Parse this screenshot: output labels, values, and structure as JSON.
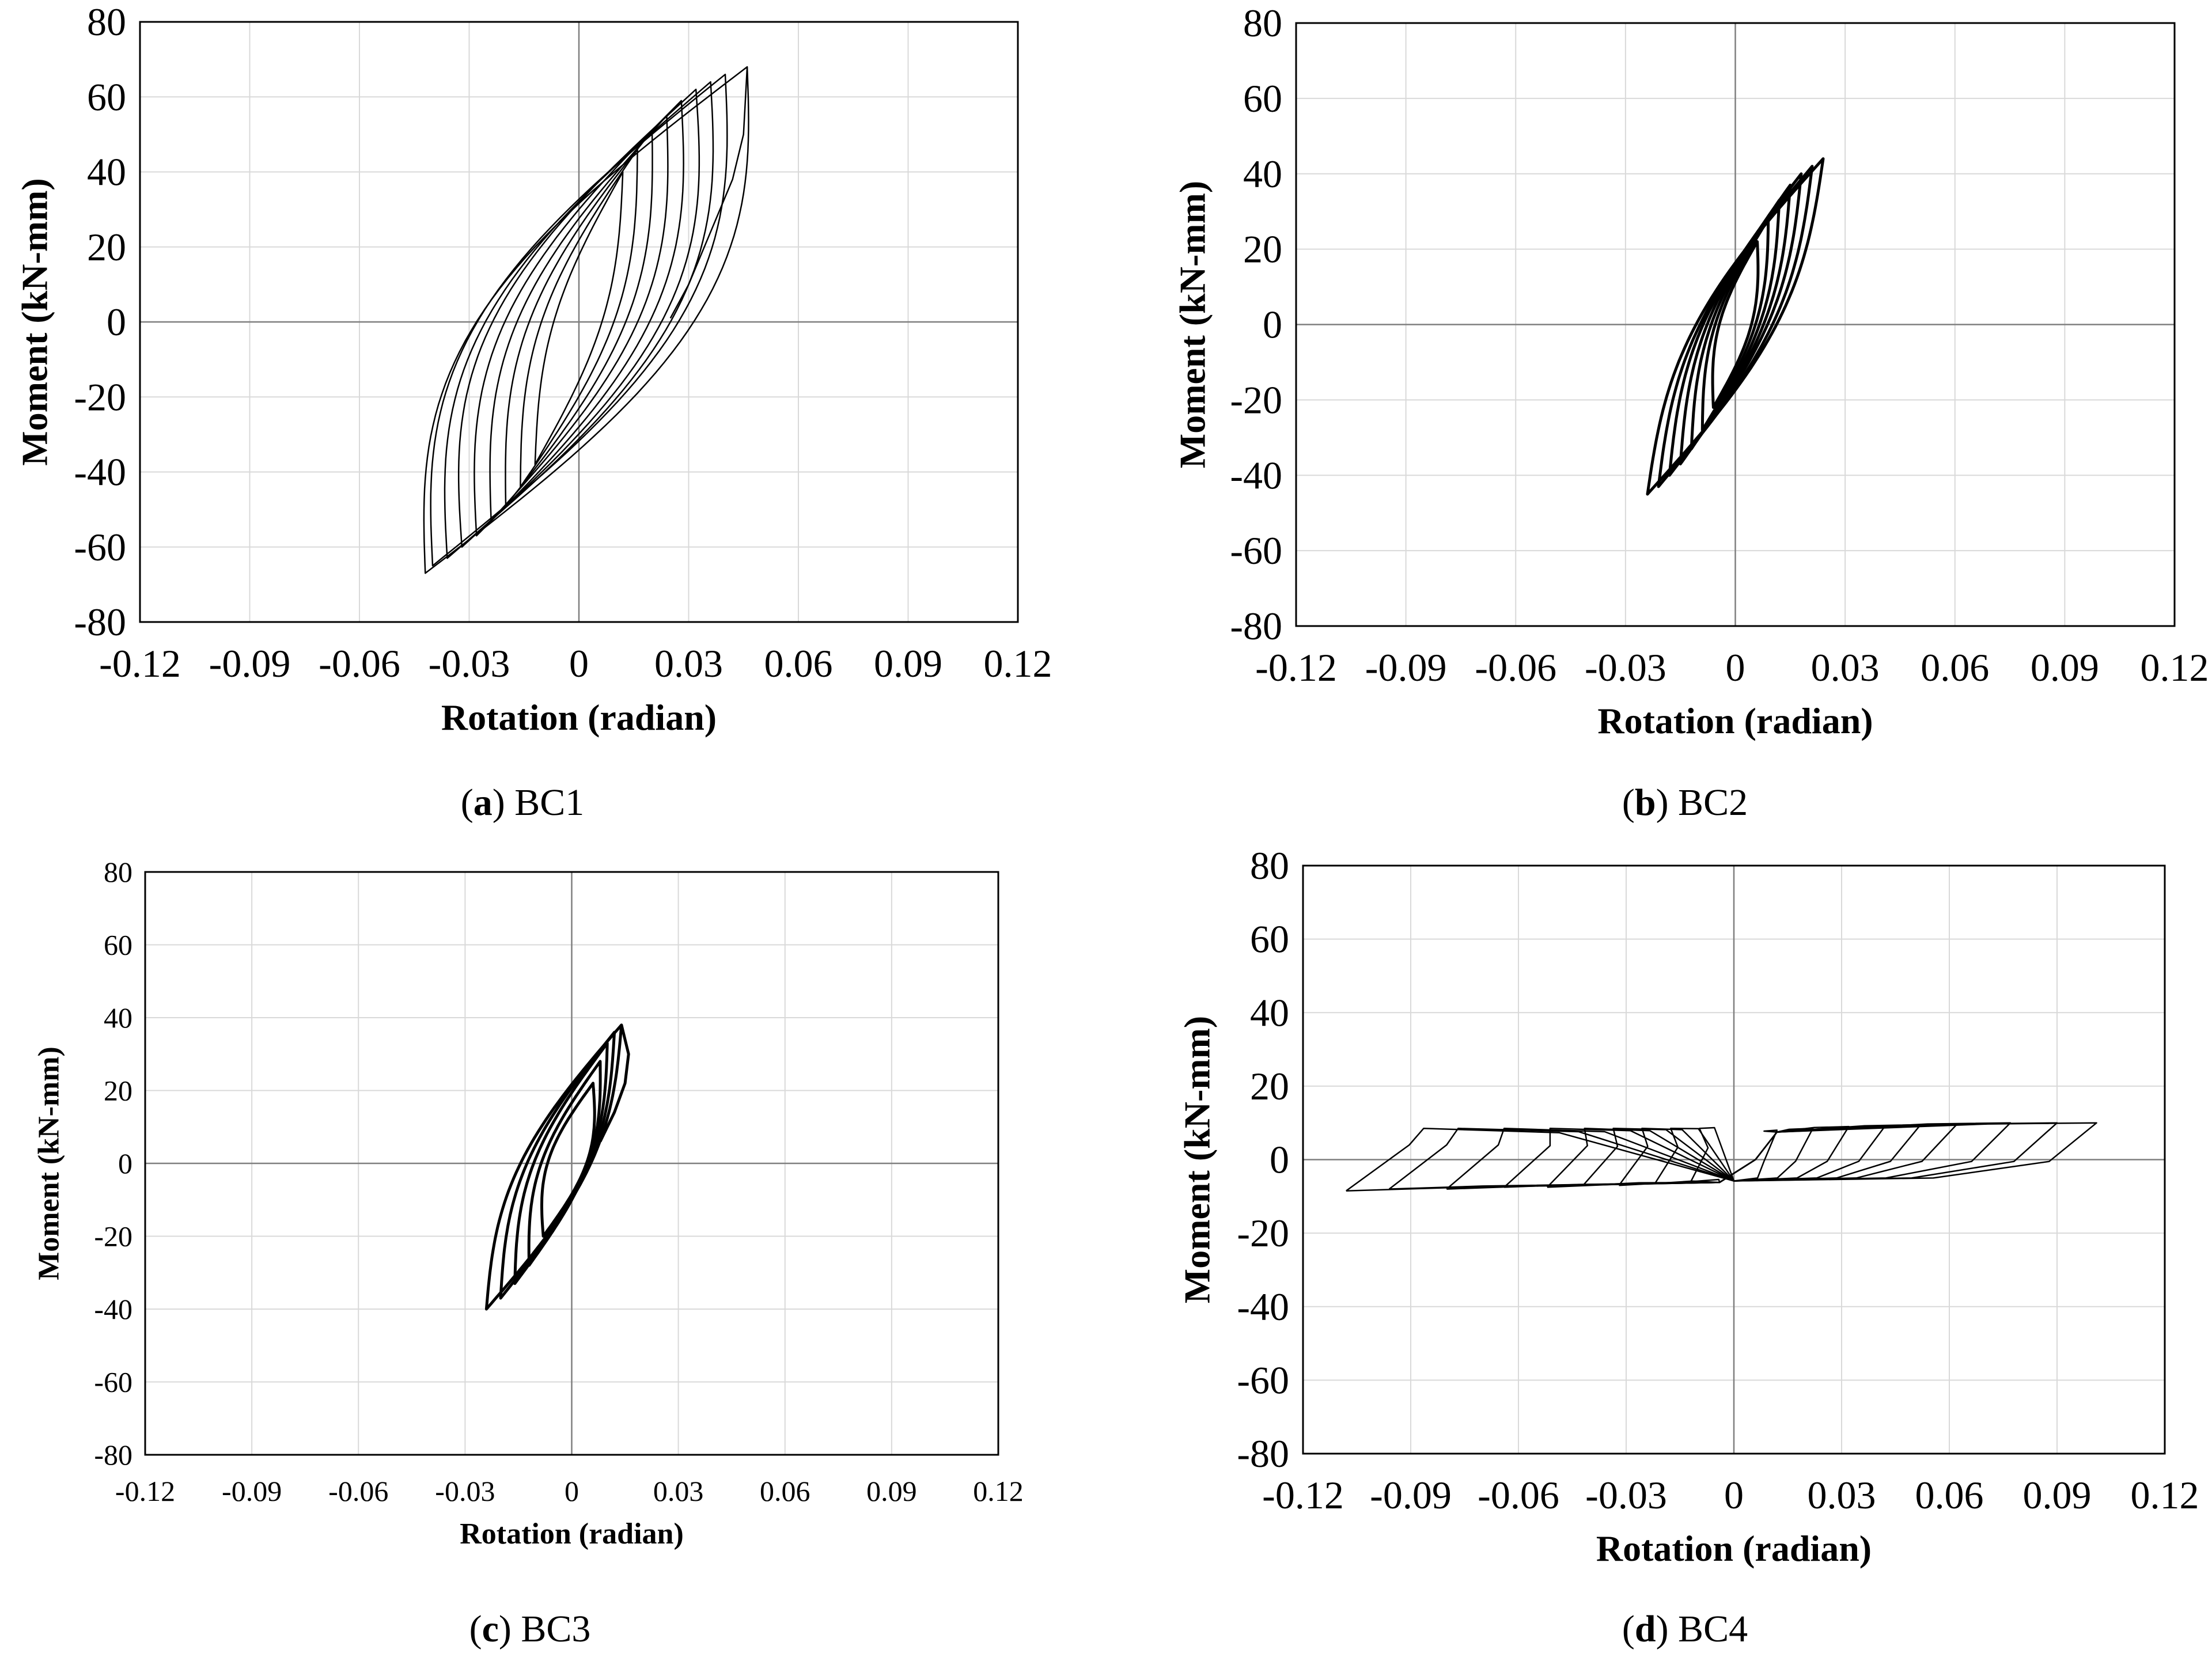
{
  "figure": {
    "panels": [
      {
        "letter": "a",
        "name": "BC1"
      },
      {
        "letter": "b",
        "name": "BC2"
      },
      {
        "letter": "c",
        "name": "BC3"
      },
      {
        "letter": "d",
        "name": "BC4"
      }
    ]
  },
  "chart_data": [
    {
      "type": "line",
      "id": "a",
      "caption_letter": "a",
      "caption_name": "BC1",
      "xlabel": "Rotation (radian)",
      "ylabel": "Moment (kN-mm)",
      "xlim": [
        -0.12,
        0.12
      ],
      "ylim": [
        -80,
        80
      ],
      "grid": true,
      "xticks": [
        "-0.12",
        "-0.09",
        "-0.06",
        "-0.03",
        "0",
        "0.03",
        "0.06",
        "0.09",
        "0.12"
      ],
      "yticks": [
        "80",
        "60",
        "40",
        "20",
        "0",
        "-20",
        "-40",
        "-60",
        "-80"
      ],
      "series": [
        {
          "name": "hysteresis",
          "loops": [
            {
              "d_pos": 0.012,
              "m_pos": 40,
              "d_neg": -0.012,
              "m_neg": -38,
              "w": 6
            },
            {
              "d_pos": 0.016,
              "m_pos": 46,
              "d_neg": -0.016,
              "m_neg": -44,
              "w": 9
            },
            {
              "d_pos": 0.02,
              "m_pos": 51,
              "d_neg": -0.02,
              "m_neg": -49,
              "w": 12
            },
            {
              "d_pos": 0.024,
              "m_pos": 55,
              "d_neg": -0.024,
              "m_neg": -53,
              "w": 15
            },
            {
              "d_pos": 0.028,
              "m_pos": 59,
              "d_neg": -0.028,
              "m_neg": -57,
              "w": 18
            },
            {
              "d_pos": 0.032,
              "m_pos": 62,
              "d_neg": -0.032,
              "m_neg": -60,
              "w": 21
            },
            {
              "d_pos": 0.036,
              "m_pos": 64,
              "d_neg": -0.036,
              "m_neg": -63,
              "w": 23
            },
            {
              "d_pos": 0.04,
              "m_pos": 66,
              "d_neg": -0.04,
              "m_neg": -65,
              "w": 25
            },
            {
              "d_pos": 0.046,
              "m_pos": 68,
              "d_neg": -0.042,
              "m_neg": -67,
              "w": 27
            }
          ],
          "tail": {
            "x": [
              0.046,
              0.045,
              0.042,
              0.036,
              0.03,
              0.025
            ],
            "y": [
              68,
              50,
              38,
              24,
              10,
              1
            ]
          }
        }
      ]
    },
    {
      "type": "line",
      "id": "b",
      "caption_letter": "b",
      "caption_name": "BC2",
      "xlabel": "Rotation (radian)",
      "ylabel": "Moment (kN-mm)",
      "xlim": [
        -0.12,
        0.12
      ],
      "ylim": [
        -80,
        80
      ],
      "grid": true,
      "xticks": [
        "-0.12",
        "-0.09",
        "-0.06",
        "-0.03",
        "0",
        "0.03",
        "0.06",
        "0.09",
        "0.12"
      ],
      "yticks": [
        "80",
        "60",
        "40",
        "20",
        "0",
        "-20",
        "-40",
        "-60",
        "-80"
      ],
      "series": [
        {
          "name": "hysteresis",
          "loops": [
            {
              "d_pos": 0.006,
              "m_pos": 22,
              "d_neg": -0.006,
              "m_neg": -22,
              "w": 4
            },
            {
              "d_pos": 0.009,
              "m_pos": 28,
              "d_neg": -0.009,
              "m_neg": -28,
              "w": 5
            },
            {
              "d_pos": 0.012,
              "m_pos": 33,
              "d_neg": -0.012,
              "m_neg": -33,
              "w": 6
            },
            {
              "d_pos": 0.015,
              "m_pos": 37,
              "d_neg": -0.015,
              "m_neg": -37,
              "w": 7
            },
            {
              "d_pos": 0.018,
              "m_pos": 40,
              "d_neg": -0.018,
              "m_neg": -40,
              "w": 8
            },
            {
              "d_pos": 0.021,
              "m_pos": 42,
              "d_neg": -0.021,
              "m_neg": -43,
              "w": 9
            },
            {
              "d_pos": 0.024,
              "m_pos": 44,
              "d_neg": -0.024,
              "m_neg": -45,
              "w": 10
            }
          ]
        }
      ]
    },
    {
      "type": "line",
      "id": "c",
      "caption_letter": "c",
      "caption_name": "BC3",
      "xlabel": "Rotation (radian)",
      "ylabel": "Moment (kN-mm)",
      "xlim": [
        -0.12,
        0.12
      ],
      "ylim": [
        -80,
        80
      ],
      "grid": true,
      "xticks": [
        "-0.12",
        "-0.09",
        "-0.06",
        "-0.03",
        "0",
        "0.03",
        "0.06",
        "0.09",
        "0.12"
      ],
      "yticks": [
        "80",
        "60",
        "40",
        "20",
        "0",
        "-20",
        "-40",
        "-60",
        "-80"
      ],
      "series": [
        {
          "name": "hysteresis",
          "loops": [
            {
              "d_pos": 0.006,
              "m_pos": 22,
              "d_neg": -0.008,
              "m_neg": -20,
              "w": 5
            },
            {
              "d_pos": 0.008,
              "m_pos": 28,
              "d_neg": -0.012,
              "m_neg": -28,
              "w": 6
            },
            {
              "d_pos": 0.01,
              "m_pos": 33,
              "d_neg": -0.016,
              "m_neg": -33,
              "w": 7
            },
            {
              "d_pos": 0.012,
              "m_pos": 36,
              "d_neg": -0.02,
              "m_neg": -37,
              "w": 8
            },
            {
              "d_pos": 0.014,
              "m_pos": 38,
              "d_neg": -0.024,
              "m_neg": -40,
              "w": 9
            }
          ],
          "tail": {
            "x": [
              0.014,
              0.016,
              0.015,
              0.012,
              0.008
            ],
            "y": [
              38,
              30,
              22,
              14,
              6
            ]
          }
        }
      ]
    },
    {
      "type": "line",
      "id": "d",
      "caption_letter": "d",
      "caption_name": "BC4",
      "xlabel": "Rotation (radian)",
      "ylabel": "Moment (kN-mm)",
      "xlim": [
        -0.12,
        0.12
      ],
      "ylim": [
        -80,
        80
      ],
      "grid": true,
      "xticks": [
        "-0.12",
        "-0.09",
        "-0.06",
        "-0.03",
        "0",
        "0.03",
        "0.06",
        "0.09",
        "0.12"
      ],
      "yticks": [
        "80",
        "60",
        "40",
        "20",
        "0",
        "-20",
        "-40",
        "-60",
        "-80"
      ],
      "series": [
        {
          "name": "hysteresis",
          "loops": [
            {
              "d_pos": 0.012,
              "m_pos": 8,
              "d_neg": -0.012,
              "m_neg": -6,
              "w": 0.006
            },
            {
              "d_pos": 0.022,
              "m_pos": 8.5,
              "d_neg": -0.022,
              "m_neg": -6.5,
              "w": 0.008
            },
            {
              "d_pos": 0.032,
              "m_pos": 9,
              "d_neg": -0.032,
              "m_neg": -7,
              "w": 0.01
            },
            {
              "d_pos": 0.042,
              "m_pos": 9,
              "d_neg": -0.042,
              "m_neg": -7,
              "w": 0.012
            },
            {
              "d_pos": 0.052,
              "m_pos": 9.5,
              "d_neg": -0.052,
              "m_neg": -7.5,
              "w": 0.014
            },
            {
              "d_pos": 0.062,
              "m_pos": 9.5,
              "d_neg": -0.064,
              "m_neg": -7.5,
              "w": 0.016
            },
            {
              "d_pos": 0.077,
              "m_pos": 10,
              "d_neg": -0.08,
              "m_neg": -8,
              "w": 0.018
            },
            {
              "d_pos": 0.09,
              "m_pos": 10,
              "d_neg": -0.096,
              "m_neg": -8,
              "w": 0.02
            },
            {
              "d_pos": 0.101,
              "m_pos": 10,
              "d_neg": -0.108,
              "m_neg": -8.5,
              "w": 0.022
            }
          ]
        }
      ]
    }
  ]
}
